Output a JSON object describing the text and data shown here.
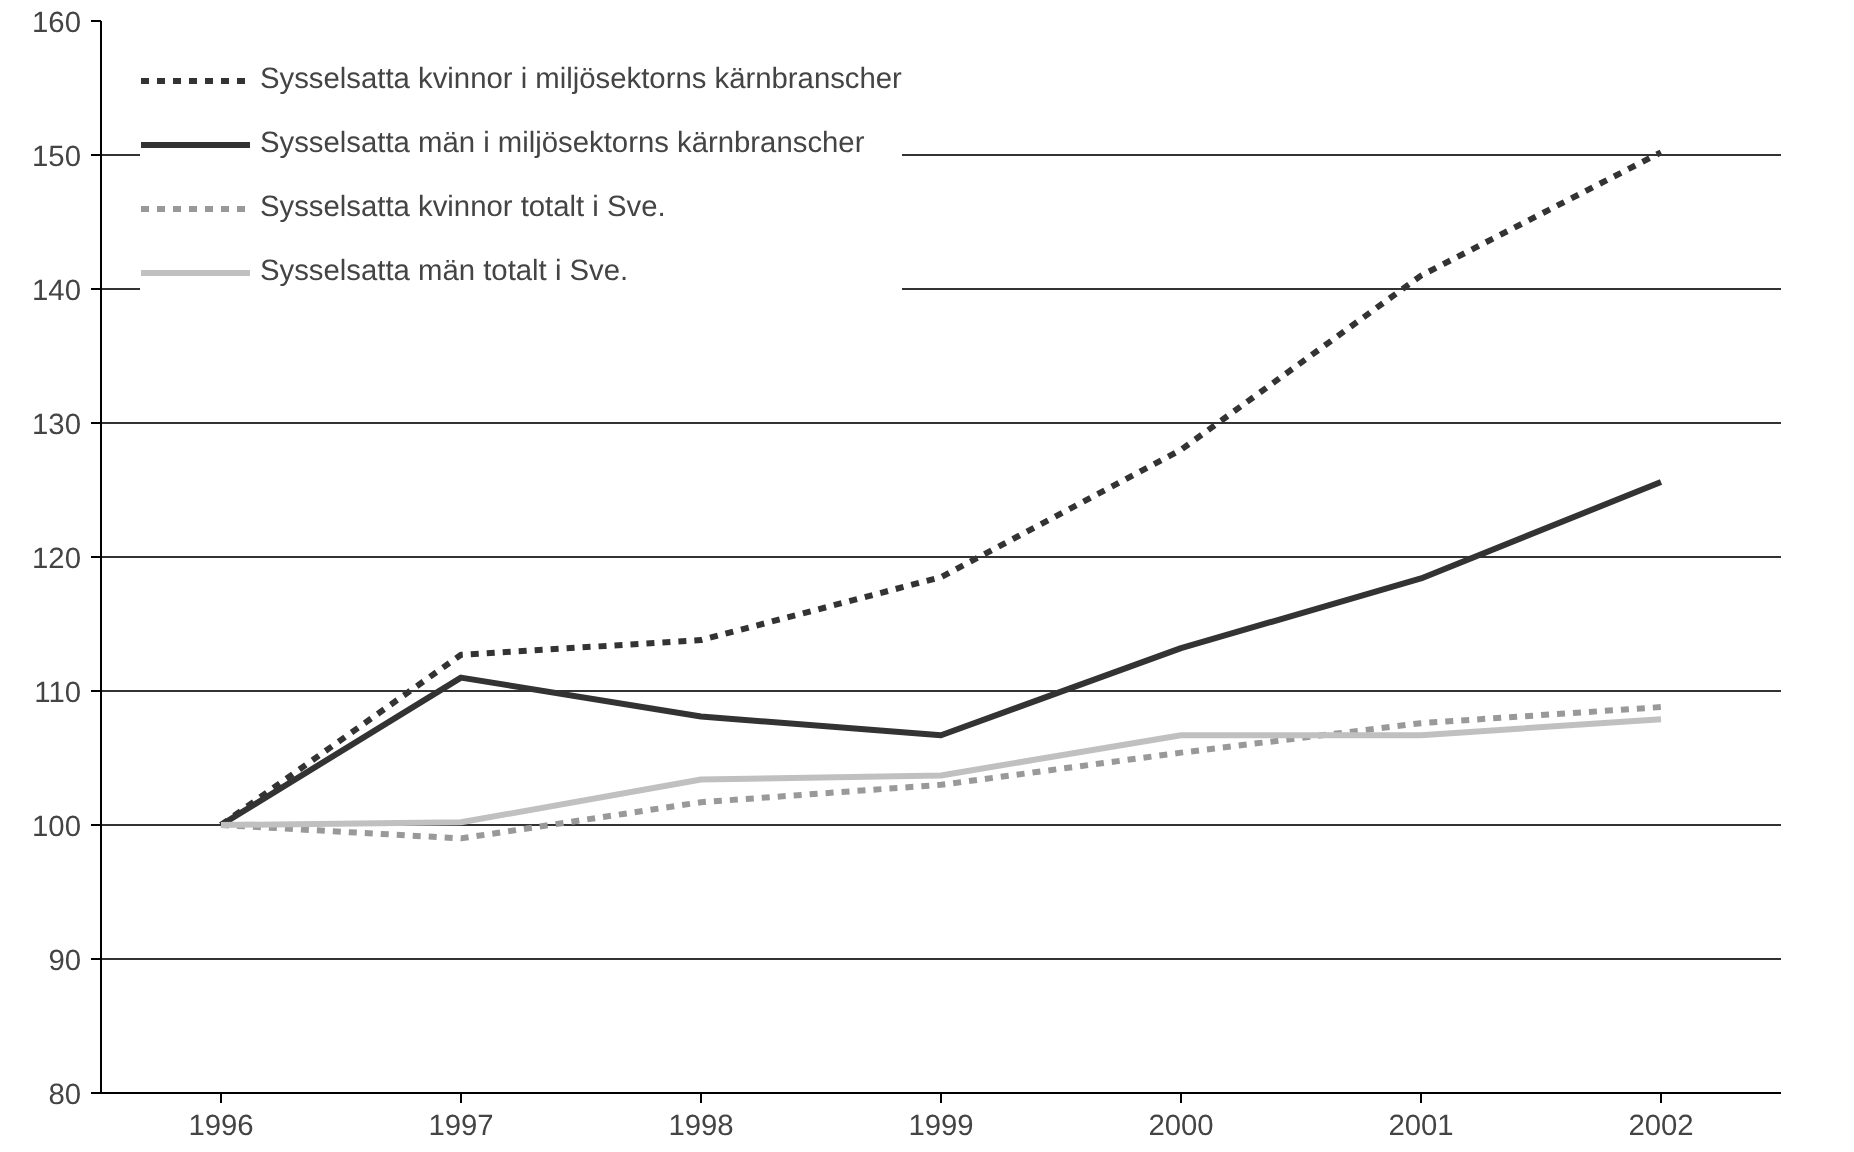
{
  "chart_data": {
    "type": "line",
    "categories": [
      "1996",
      "1997",
      "1998",
      "1999",
      "2000",
      "2001",
      "2002"
    ],
    "series": [
      {
        "name": "Sysselsatta kvinnor i miljösektorns kärnbranscher",
        "color": "#333333",
        "line_style": "dashed",
        "values": [
          100,
          112.7,
          113.8,
          118.5,
          128,
          141,
          150.2
        ]
      },
      {
        "name": "Sysselsatta män i miljösektorns kärnbranscher",
        "color": "#333333",
        "line_style": "solid",
        "values": [
          100,
          111,
          108.1,
          106.7,
          113.2,
          118.4,
          125.6
        ]
      },
      {
        "name": "Sysselsatta kvinnor totalt i Sve.",
        "color": "#999999",
        "line_style": "dashed",
        "values": [
          100,
          99,
          101.7,
          103,
          105.4,
          107.6,
          108.8
        ]
      },
      {
        "name": "Sysselsatta män totalt i Sve.",
        "color": "#c0c0c0",
        "line_style": "solid",
        "values": [
          100,
          100.2,
          103.4,
          103.7,
          106.7,
          106.7,
          107.9
        ]
      }
    ],
    "ylim": [
      80,
      160
    ],
    "yticks": [
      80,
      90,
      100,
      110,
      120,
      130,
      140,
      150,
      160
    ],
    "grid": "y",
    "legend": "top left",
    "marker": "none"
  }
}
